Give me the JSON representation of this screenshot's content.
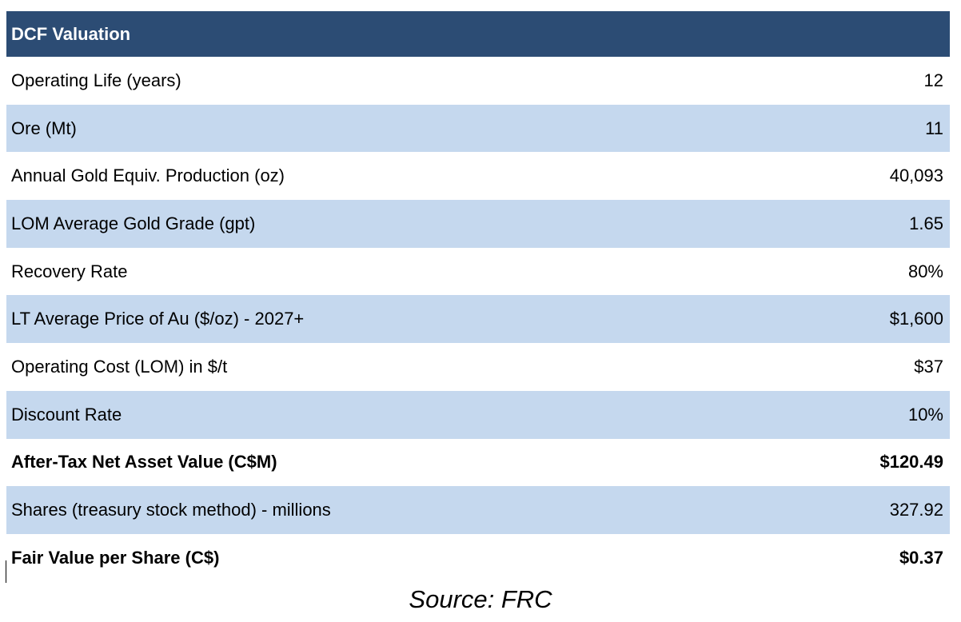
{
  "table": {
    "title": "DCF Valuation",
    "rows": [
      {
        "label": "Operating Life (years)",
        "value": "12",
        "shaded": false,
        "bold": false
      },
      {
        "label": "Ore (Mt)",
        "value": "11",
        "shaded": true,
        "bold": false
      },
      {
        "label": "Annual Gold Equiv. Production (oz)",
        "value": "40,093",
        "shaded": false,
        "bold": false
      },
      {
        "label": "LOM Average Gold Grade (gpt)",
        "value": "1.65",
        "shaded": true,
        "bold": false
      },
      {
        "label": "Recovery Rate",
        "value": "80%",
        "shaded": false,
        "bold": false
      },
      {
        "label": "LT Average Price of Au ($/oz) - 2027+",
        "value": "$1,600",
        "shaded": true,
        "bold": false
      },
      {
        "label": "Operating Cost (LOM) in $/t",
        "value": "$37",
        "shaded": false,
        "bold": false
      },
      {
        "label": "Discount Rate",
        "value": "10%",
        "shaded": true,
        "bold": false
      },
      {
        "label": "After-Tax Net Asset Value (C$M)",
        "value": "$120.49",
        "shaded": false,
        "bold": true
      },
      {
        "label": "Shares (treasury stock method) - millions",
        "value": "327.92",
        "shaded": true,
        "bold": false
      },
      {
        "label": "Fair Value per Share (C$)",
        "value": "$0.37",
        "shaded": false,
        "bold": true
      }
    ]
  },
  "source": "Source: FRC",
  "colors": {
    "header_bg": "#2c4c74",
    "shaded_row": "#c5d8ee"
  }
}
